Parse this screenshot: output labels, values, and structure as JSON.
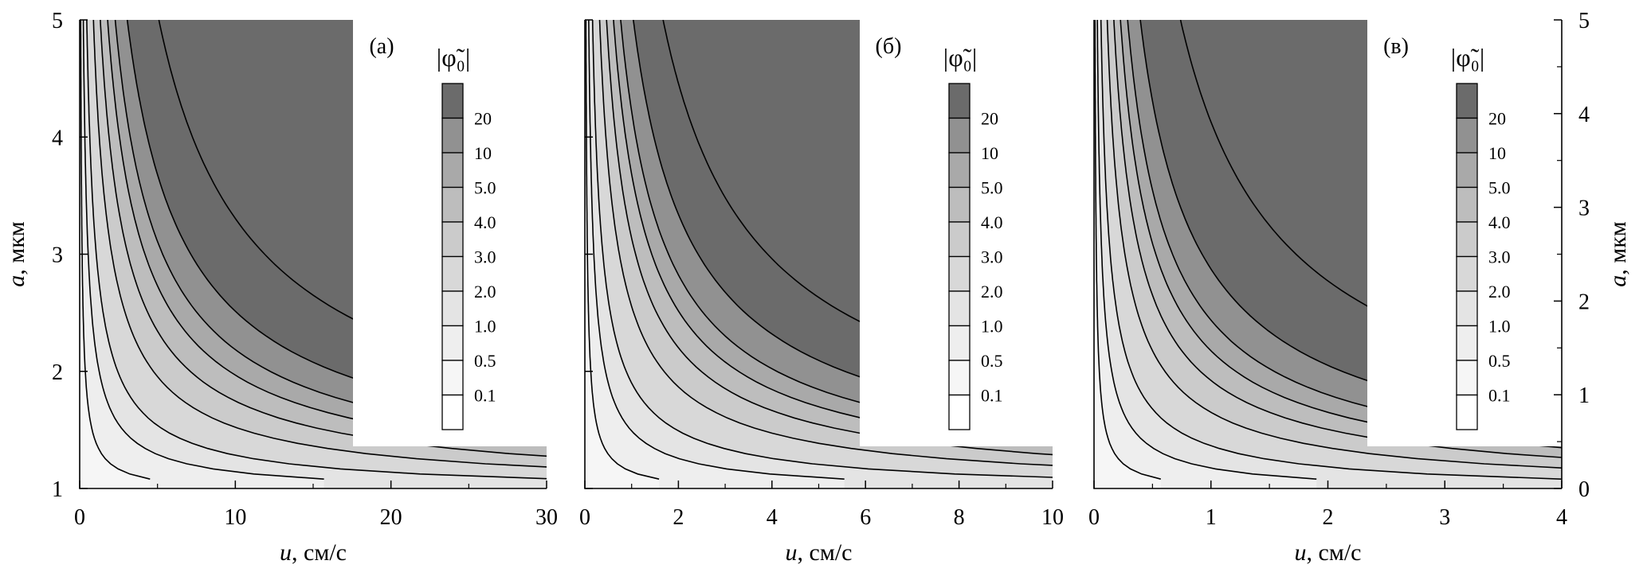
{
  "chart_data": [
    {
      "type": "contour",
      "panel_label": "(а)",
      "xlabel_var": "u",
      "xlabel_units": ", см/с",
      "ylabel_var": "a",
      "ylabel_units": ", мкм",
      "xlim": [
        0,
        30
      ],
      "ylim": [
        1,
        5
      ],
      "x_ticks": [
        "0",
        "10",
        "20",
        "30"
      ],
      "y_ticks": [
        "1",
        "2",
        "3",
        "4",
        "5"
      ],
      "levels": [
        0.1,
        0.5,
        1.0,
        2.0,
        3.0,
        4.0,
        5.0,
        10,
        20
      ],
      "level_labels": [
        "0.1",
        "0.5",
        "1.0",
        "2.0",
        "3.0",
        "4.0",
        "5.0",
        "10",
        "20"
      ],
      "colorbar_title": "|φ̃₀|"
    },
    {
      "type": "contour",
      "panel_label": "(б)",
      "xlabel_var": "u",
      "xlabel_units": ", см/с",
      "xlim": [
        0,
        10
      ],
      "ylim": [
        1,
        5
      ],
      "x_ticks": [
        "0",
        "2",
        "4",
        "6",
        "8",
        "10"
      ],
      "levels": [
        0.1,
        0.5,
        1.0,
        2.0,
        3.0,
        4.0,
        5.0,
        10,
        20
      ],
      "level_labels": [
        "0.1",
        "0.5",
        "1.0",
        "2.0",
        "3.0",
        "4.0",
        "5.0",
        "10",
        "20"
      ],
      "colorbar_title": "|φ̃₀|"
    },
    {
      "type": "contour",
      "panel_label": "(в)",
      "xlabel_var": "u",
      "xlabel_units": ", см/с",
      "ylabel_var": "a",
      "ylabel_units": ", мкм",
      "xlim": [
        0,
        4
      ],
      "ylim": [
        0,
        5
      ],
      "x_ticks": [
        "0",
        "1",
        "2",
        "3",
        "4"
      ],
      "y_ticks_right": [
        "0",
        "1",
        "2",
        "3",
        "4",
        "5"
      ],
      "levels": [
        0.1,
        0.5,
        1.0,
        2.0,
        3.0,
        4.0,
        5.0,
        10,
        20
      ],
      "level_labels": [
        "0.1",
        "0.5",
        "1.0",
        "2.0",
        "3.0",
        "4.0",
        "5.0",
        "10",
        "20"
      ],
      "colorbar_title": "|φ̃₀|"
    }
  ],
  "colors": {
    "bands": [
      "#f6f6f6",
      "#eeeeee",
      "#e4e4e4",
      "#d8d8d8",
      "#cbcbcb",
      "#bdbdbd",
      "#a9a9a9",
      "#919191",
      "#6b6b6b"
    ],
    "line": "#000000"
  }
}
